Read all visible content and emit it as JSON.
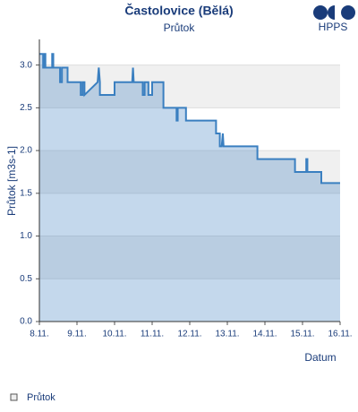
{
  "chart_data": {
    "type": "line",
    "title": "Častolovice (Bělá)",
    "subtitle": "Průtok",
    "logo": "HPPS",
    "ylabel": "Průtok [m3s-1]",
    "xlabel": "Datum",
    "xlim": [
      0,
      8
    ],
    "xticks": [
      {
        "value": 0,
        "label": "8.11."
      },
      {
        "value": 1,
        "label": "9.11."
      },
      {
        "value": 2,
        "label": "10.11."
      },
      {
        "value": 3,
        "label": "11.11."
      },
      {
        "value": 4,
        "label": "12.11."
      },
      {
        "value": 5,
        "label": "13.11."
      },
      {
        "value": 6,
        "label": "14.11."
      },
      {
        "value": 7,
        "label": "15.11."
      },
      {
        "value": 8,
        "label": "16.11."
      }
    ],
    "ylim": [
      0,
      3.3
    ],
    "yticks": [
      {
        "value": 0,
        "label": "0.0"
      },
      0.5,
      {
        "value": 1,
        "label": "1.0"
      },
      1.5,
      {
        "value": 2,
        "label": "2.0"
      },
      2.5,
      {
        "value": 3,
        "label": "3.0"
      }
    ],
    "grid": true,
    "legend": "bottom-left",
    "series": [
      {
        "name": "Průtok",
        "color": "#3a7fc0",
        "x": [
          0,
          0.1,
          0.1,
          0.13,
          0.13,
          0.16,
          0.16,
          0.34,
          0.34,
          0.37,
          0.37,
          0.55,
          0.55,
          0.6,
          0.6,
          0.75,
          0.75,
          1.1,
          1.1,
          1.15,
          1.15,
          1.2,
          1.2,
          1.55,
          1.58,
          1.61,
          1.61,
          2.0,
          2.0,
          2.47,
          2.49,
          2.51,
          2.51,
          2.75,
          2.75,
          2.8,
          2.8,
          2.9,
          2.9,
          3.0,
          3.0,
          3.3,
          3.3,
          3.65,
          3.65,
          3.68,
          3.68,
          3.9,
          3.9,
          4.0,
          4.0,
          4.7,
          4.7,
          4.8,
          4.8,
          4.85,
          4.88,
          4.9,
          4.9,
          5.8,
          5.8,
          6.8,
          6.8,
          7.1,
          7.1,
          7.13,
          7.13,
          7.5,
          7.5,
          8
        ],
        "values": [
          3.13,
          3.13,
          2.97,
          2.97,
          3.13,
          3.13,
          2.97,
          2.97,
          3.13,
          3.13,
          2.97,
          2.97,
          2.8,
          2.8,
          2.97,
          2.97,
          2.8,
          2.8,
          2.65,
          2.65,
          2.8,
          2.8,
          2.65,
          2.8,
          2.97,
          2.8,
          2.65,
          2.65,
          2.8,
          2.8,
          2.97,
          2.8,
          2.8,
          2.8,
          2.65,
          2.65,
          2.8,
          2.8,
          2.65,
          2.65,
          2.8,
          2.8,
          2.5,
          2.5,
          2.35,
          2.35,
          2.5,
          2.5,
          2.35,
          2.35,
          2.35,
          2.35,
          2.2,
          2.2,
          2.05,
          2.05,
          2.2,
          2.05,
          2.05,
          2.05,
          1.9,
          1.9,
          1.75,
          1.75,
          1.9,
          1.9,
          1.75,
          1.75,
          1.62,
          1.62
        ]
      }
    ]
  }
}
